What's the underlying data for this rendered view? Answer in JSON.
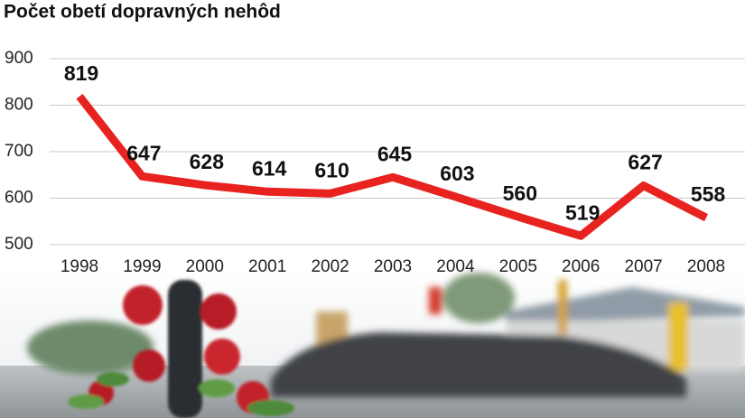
{
  "chart_data": {
    "type": "line",
    "title": "Počet obetí dopravných nehôd",
    "categories": [
      "1998",
      "1999",
      "2000",
      "2001",
      "2002",
      "2003",
      "2004",
      "2005",
      "2006",
      "2007",
      "2008"
    ],
    "values": [
      819,
      647,
      628,
      614,
      610,
      645,
      603,
      560,
      519,
      627,
      558
    ],
    "color": "#e8231f",
    "ylim": [
      500,
      900
    ],
    "yticks": [
      500,
      600,
      700,
      800,
      900
    ],
    "grid": true
  }
}
